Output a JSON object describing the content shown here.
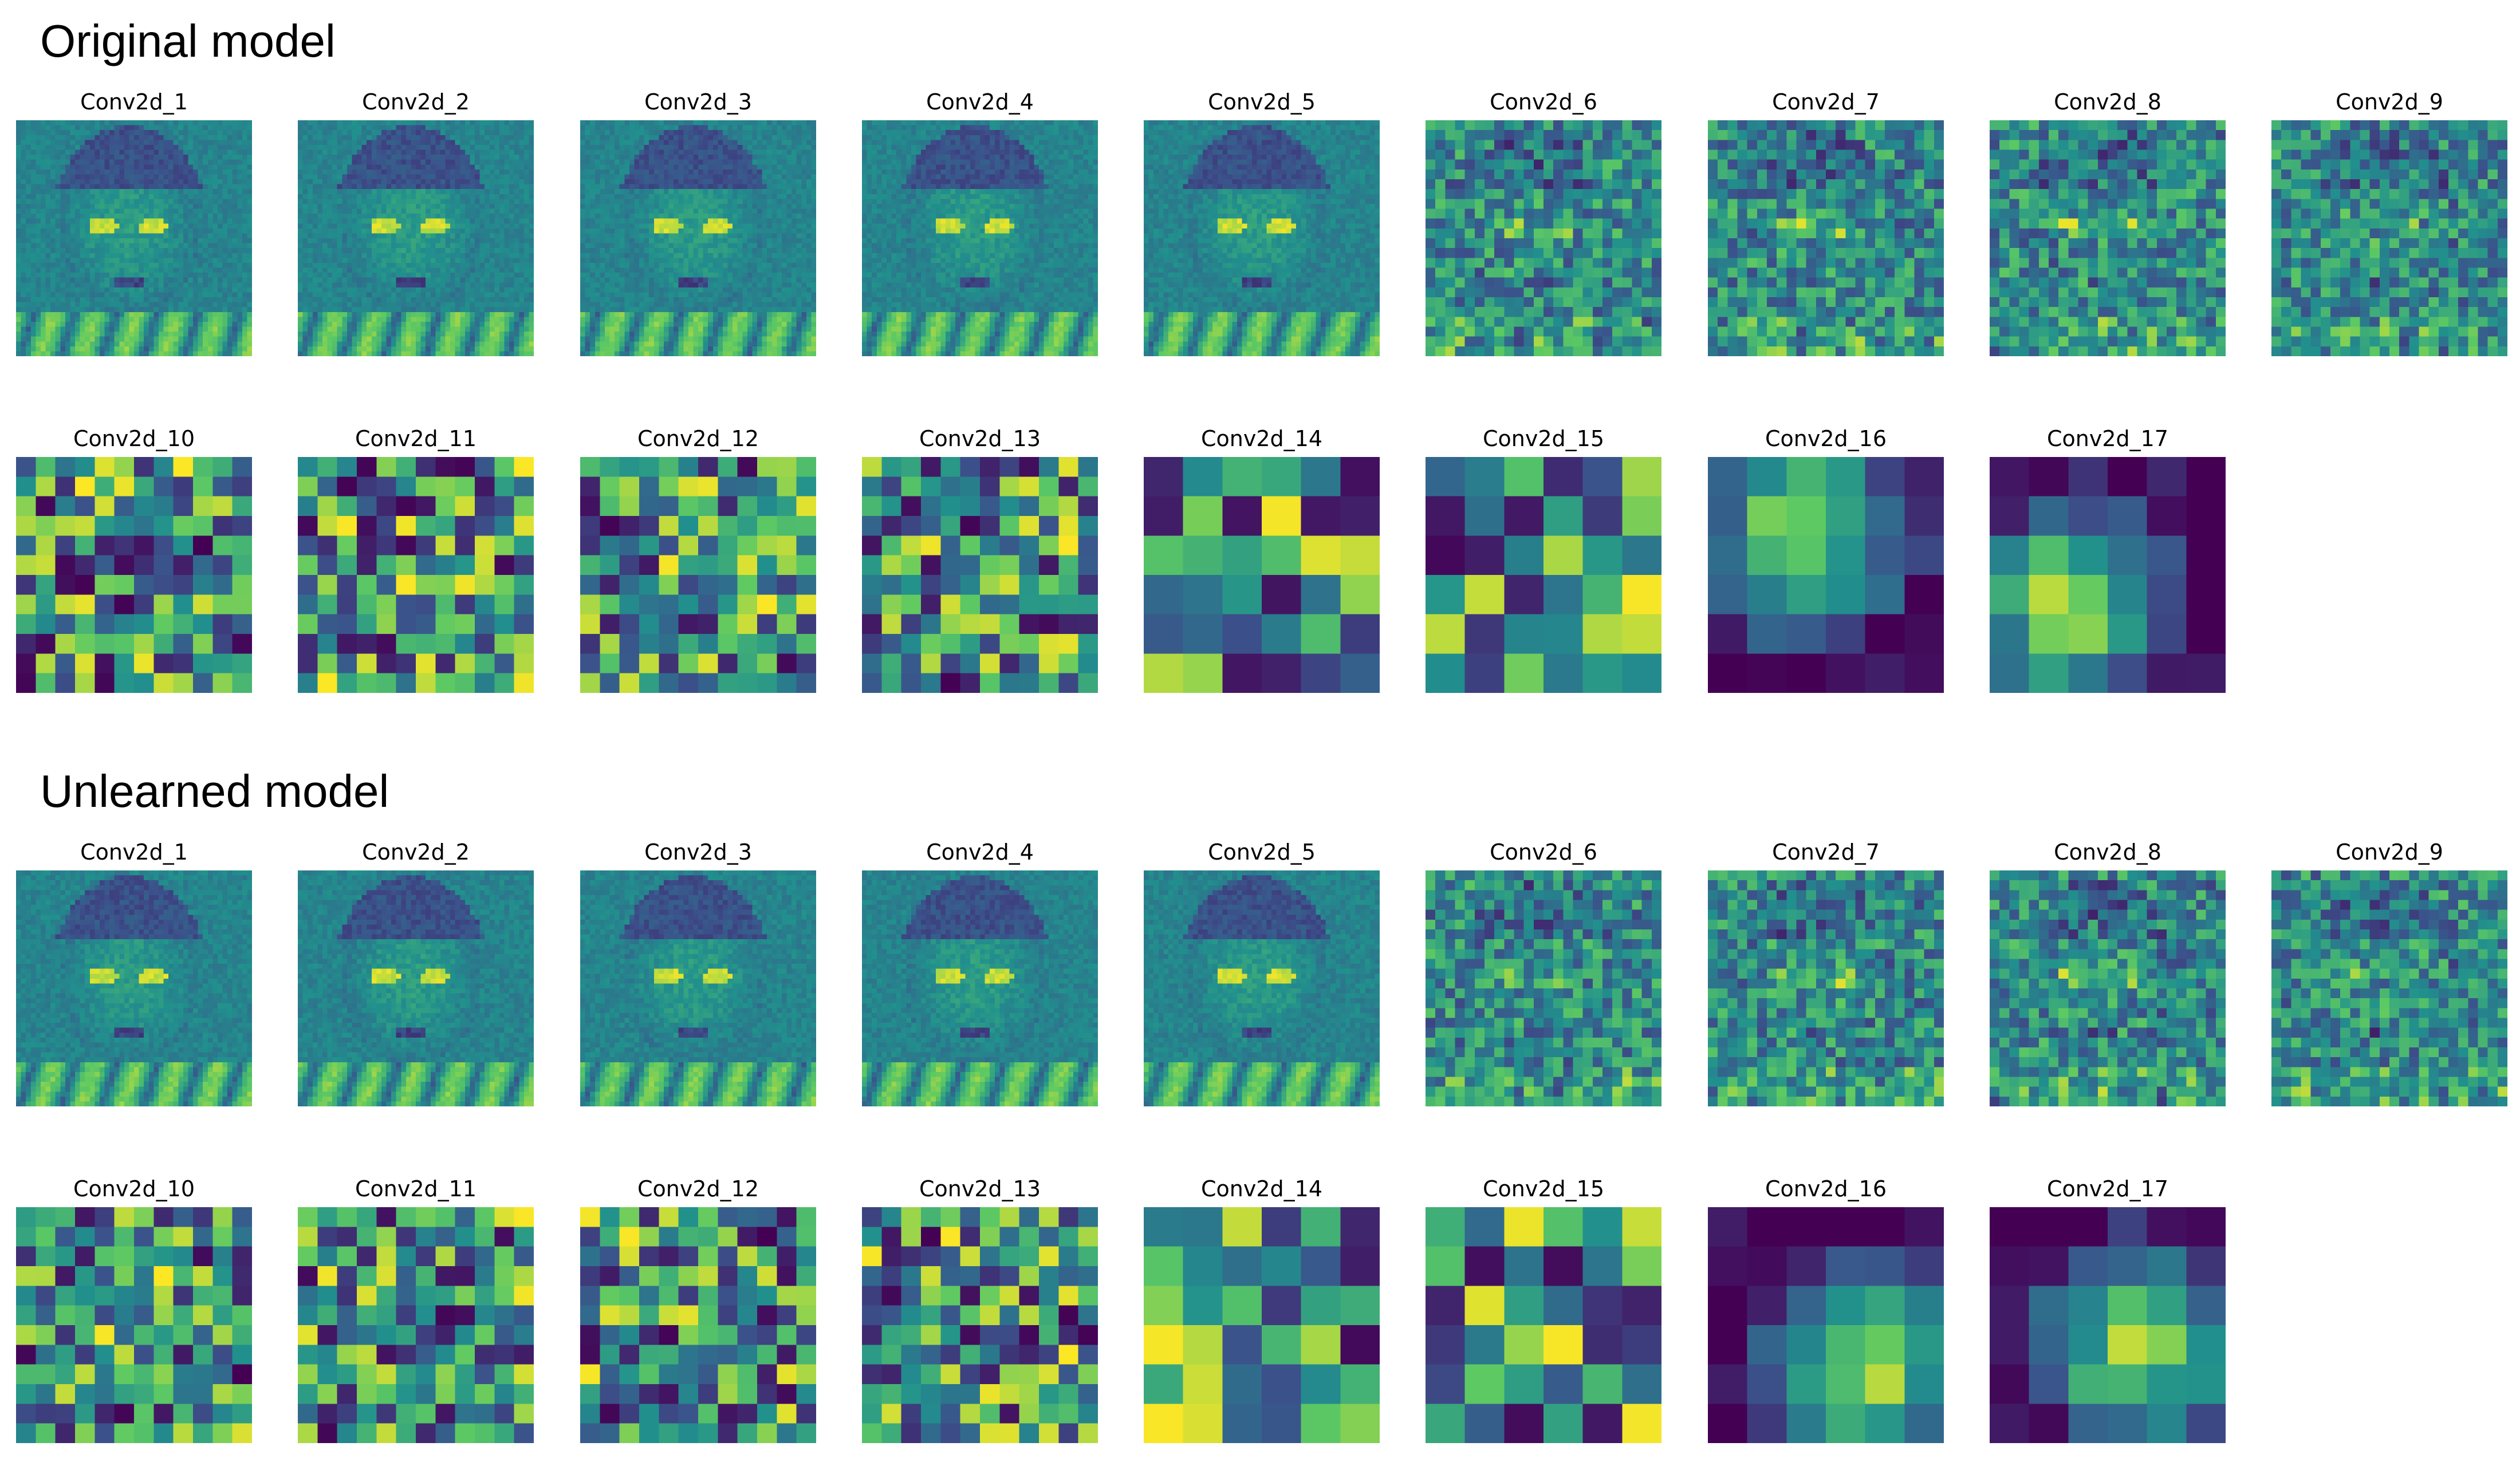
{
  "sections": [
    {
      "title": "Original model",
      "rows": [
        [
          {
            "label": "Conv2d_1",
            "grid": 48,
            "style": "face",
            "seed": 11
          },
          {
            "label": "Conv2d_2",
            "grid": 48,
            "style": "face",
            "seed": 12
          },
          {
            "label": "Conv2d_3",
            "grid": 48,
            "style": "face",
            "seed": 13
          },
          {
            "label": "Conv2d_4",
            "grid": 48,
            "style": "face",
            "seed": 14
          },
          {
            "label": "Conv2d_5",
            "grid": 48,
            "style": "face",
            "seed": 15
          },
          {
            "label": "Conv2d_6",
            "grid": 24,
            "style": "noisy",
            "seed": 16
          },
          {
            "label": "Conv2d_7",
            "grid": 24,
            "style": "noisy",
            "seed": 17
          },
          {
            "label": "Conv2d_8",
            "grid": 24,
            "style": "noisy",
            "seed": 18
          },
          {
            "label": "Conv2d_9",
            "grid": 24,
            "style": "noisy",
            "seed": 19
          }
        ],
        [
          {
            "label": "Conv2d_10",
            "grid": 12,
            "style": "block",
            "seed": 21
          },
          {
            "label": "Conv2d_11",
            "grid": 12,
            "style": "block",
            "seed": 22
          },
          {
            "label": "Conv2d_12",
            "grid": 12,
            "style": "block",
            "seed": 23
          },
          {
            "label": "Conv2d_13",
            "grid": 12,
            "style": "block",
            "seed": 24
          },
          {
            "label": "Conv2d_14",
            "grid": 6,
            "style": "block",
            "seed": 25
          },
          {
            "label": "Conv2d_15",
            "grid": 6,
            "style": "block",
            "seed": 26
          },
          {
            "label": "Conv2d_16",
            "grid": 6,
            "style": "blob",
            "seed": 27
          },
          {
            "label": "Conv2d_17",
            "grid": 6,
            "style": "blob",
            "seed": 28
          }
        ]
      ]
    },
    {
      "title": "Unlearned model",
      "rows": [
        [
          {
            "label": "Conv2d_1",
            "grid": 48,
            "style": "face",
            "seed": 31
          },
          {
            "label": "Conv2d_2",
            "grid": 48,
            "style": "face",
            "seed": 32
          },
          {
            "label": "Conv2d_3",
            "grid": 48,
            "style": "face",
            "seed": 33
          },
          {
            "label": "Conv2d_4",
            "grid": 48,
            "style": "face",
            "seed": 34
          },
          {
            "label": "Conv2d_5",
            "grid": 48,
            "style": "face",
            "seed": 35
          },
          {
            "label": "Conv2d_6",
            "grid": 24,
            "style": "noisy",
            "seed": 36
          },
          {
            "label": "Conv2d_7",
            "grid": 24,
            "style": "noisy",
            "seed": 37
          },
          {
            "label": "Conv2d_8",
            "grid": 24,
            "style": "noisy",
            "seed": 38
          },
          {
            "label": "Conv2d_9",
            "grid": 24,
            "style": "noisy",
            "seed": 39
          }
        ],
        [
          {
            "label": "Conv2d_10",
            "grid": 12,
            "style": "block",
            "seed": 41
          },
          {
            "label": "Conv2d_11",
            "grid": 12,
            "style": "block",
            "seed": 42
          },
          {
            "label": "Conv2d_12",
            "grid": 12,
            "style": "block",
            "seed": 43
          },
          {
            "label": "Conv2d_13",
            "grid": 12,
            "style": "block",
            "seed": 44
          },
          {
            "label": "Conv2d_14",
            "grid": 6,
            "style": "block",
            "seed": 45
          },
          {
            "label": "Conv2d_15",
            "grid": 6,
            "style": "block",
            "seed": 46
          },
          {
            "label": "Conv2d_16",
            "grid": 6,
            "style": "blob",
            "seed": 47
          },
          {
            "label": "Conv2d_17",
            "grid": 6,
            "style": "blob",
            "seed": 48
          }
        ]
      ]
    }
  ],
  "colormap": [
    "#440154",
    "#3b528b",
    "#21908d",
    "#5dc963",
    "#fde725"
  ]
}
